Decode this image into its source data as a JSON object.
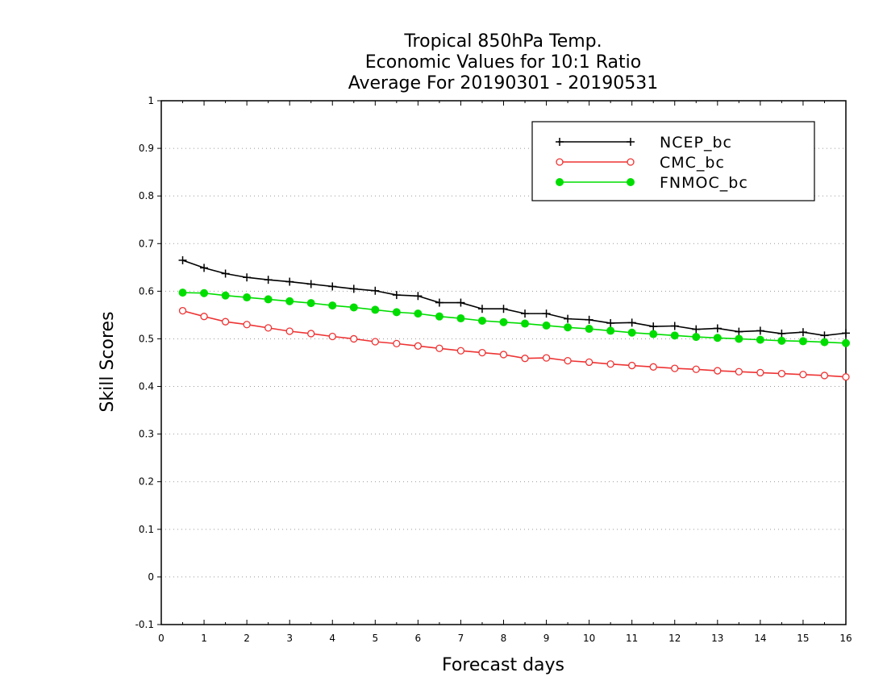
{
  "chart_data": {
    "type": "line",
    "title": [
      "Tropical 850hPa Temp.",
      "Economic Values for 10:1 Ratio",
      "Average For 20190301 - 20190531"
    ],
    "xlabel": "Forecast days",
    "ylabel": "Skill Scores",
    "xlim": [
      0,
      16
    ],
    "ylim": [
      -0.1,
      1
    ],
    "xticks": [
      0,
      1,
      2,
      3,
      4,
      5,
      6,
      7,
      8,
      9,
      10,
      11,
      12,
      13,
      14,
      15,
      16
    ],
    "yticks": [
      -0.1,
      0,
      0.1,
      0.2,
      0.3,
      0.4,
      0.5,
      0.6,
      0.7,
      0.8,
      0.9,
      1
    ],
    "ytick_labels": [
      "-0.1",
      "0",
      "0.1",
      "0.2",
      "0.3",
      "0.4",
      "0.5",
      "0.6",
      "0.7",
      "0.8",
      "0.9",
      "1"
    ],
    "grid": "horizontal dotted",
    "legend_position": "top-right",
    "x": [
      0.5,
      1,
      1.5,
      2,
      2.5,
      3,
      3.5,
      4,
      4.5,
      5,
      5.5,
      6,
      6.5,
      7,
      7.5,
      8,
      8.5,
      9,
      9.5,
      10,
      10.5,
      11,
      11.5,
      12,
      12.5,
      13,
      13.5,
      14,
      14.5,
      15,
      15.5,
      16
    ],
    "series": [
      {
        "name": "NCEP_bc",
        "color": "#000000",
        "marker": "plus",
        "values": [
          0.665,
          0.649,
          0.637,
          0.629,
          0.624,
          0.62,
          0.615,
          0.61,
          0.605,
          0.601,
          0.592,
          0.59,
          0.576,
          0.576,
          0.563,
          0.563,
          0.553,
          0.553,
          0.542,
          0.54,
          0.533,
          0.534,
          0.526,
          0.527,
          0.52,
          0.522,
          0.515,
          0.517,
          0.511,
          0.514,
          0.507,
          0.512
        ]
      },
      {
        "name": "CMC_bc",
        "color": "#ee3333",
        "marker": "open-circle",
        "values": [
          0.559,
          0.547,
          0.536,
          0.53,
          0.523,
          0.516,
          0.511,
          0.505,
          0.5,
          0.494,
          0.49,
          0.485,
          0.48,
          0.475,
          0.471,
          0.467,
          0.459,
          0.46,
          0.454,
          0.451,
          0.447,
          0.444,
          0.441,
          0.438,
          0.436,
          0.433,
          0.431,
          0.429,
          0.427,
          0.425,
          0.423,
          0.42
        ]
      },
      {
        "name": "FNMOC_bc",
        "color": "#00dd00",
        "marker": "filled-circle",
        "values": [
          0.597,
          0.596,
          0.591,
          0.587,
          0.583,
          0.579,
          0.575,
          0.57,
          0.566,
          0.561,
          0.556,
          0.553,
          0.547,
          0.543,
          0.538,
          0.535,
          0.532,
          0.528,
          0.524,
          0.521,
          0.517,
          0.513,
          0.51,
          0.507,
          0.504,
          0.502,
          0.5,
          0.498,
          0.496,
          0.495,
          0.493,
          0.491
        ]
      }
    ]
  }
}
